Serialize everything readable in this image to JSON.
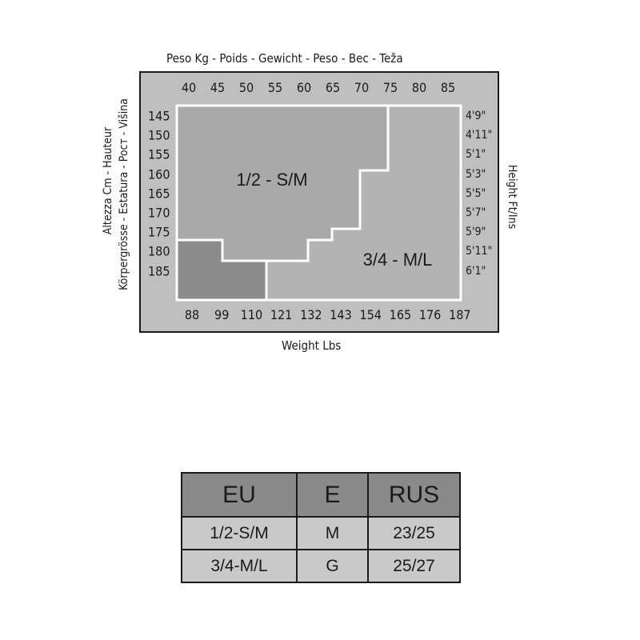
{
  "chart": {
    "top_title": "Peso Kg - Poids - Gewicht - Peso - Bec - Teža",
    "bottom_title": "Weight Lbs",
    "left_title_line1": "Altezza Cm - Hauteur",
    "left_title_line2": "Körpergrösse - Estatura - Pocт - Višina",
    "right_title": "Height Ft/Ins",
    "kg_ticks": [
      "40",
      "45",
      "50",
      "55",
      "60",
      "65",
      "70",
      "75",
      "80",
      "85"
    ],
    "lbs_ticks": [
      "88",
      "99",
      "110",
      "121",
      "132",
      "143",
      "154",
      "165",
      "176",
      "187"
    ],
    "cm_ticks": [
      "145",
      "150",
      "155",
      "160",
      "165",
      "170",
      "175",
      "180",
      "185"
    ],
    "ftin_ticks": [
      "4'9\"",
      "4'11\"",
      "5'1\"",
      "5'3\"",
      "5'5\"",
      "5'7\"",
      "5'9\"",
      "5'11\"",
      "6'1\""
    ],
    "regions": [
      {
        "label": "1/2 - S/M",
        "color": "#a9a9a9"
      },
      {
        "label": "3/4 - M/L",
        "color": "#b3b3b3"
      },
      {
        "label": "",
        "color": "#8c8c8c"
      }
    ]
  },
  "size_table": {
    "headers": [
      "EU",
      "E",
      "RUS"
    ],
    "rows": [
      [
        "1/2-S/M",
        "M",
        "23/25"
      ],
      [
        "3/4-M/L",
        "G",
        "25/27"
      ]
    ]
  }
}
